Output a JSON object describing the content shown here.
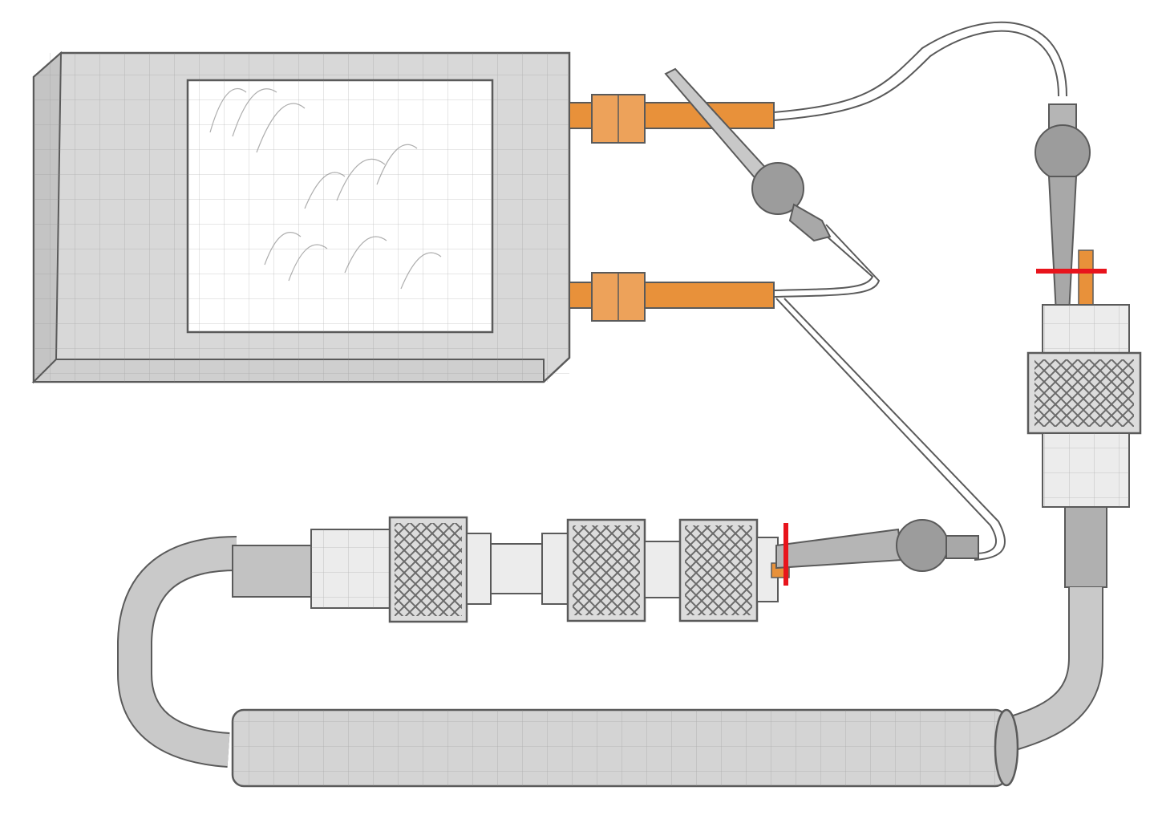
{
  "colors": {
    "background": "#ffffff",
    "pencil_line": "#5a5a5a",
    "pencil_shade": "#d6d6d6",
    "pencil_shade_dark": "#bdbdbd",
    "grid": "#8a8a8a",
    "screen": "#ffffff",
    "fitting_orange": "#e8913a",
    "fitting_orange_dark": "#cf7420",
    "cut_mark_red": "#e8141c",
    "tube_fill": "#f3f3f3"
  },
  "icons": {
    "device": "detector-box-icon",
    "valve": "valve-icon",
    "connector": "knurled-connector-icon",
    "column": "cylinder-column-icon",
    "cut_mark": "red-cut-mark-icon"
  }
}
